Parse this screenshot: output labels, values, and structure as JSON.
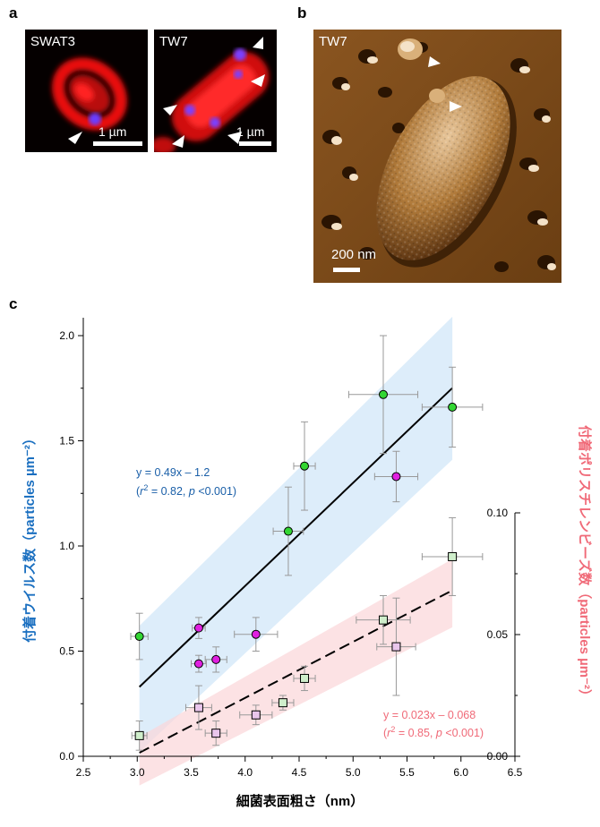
{
  "panels": {
    "a": {
      "letter": "a",
      "left_label": "SWAT3",
      "right_label": "TW7",
      "left_scale": "1 µm",
      "right_scale": "1 µm"
    },
    "b": {
      "letter": "b",
      "label": "TW7",
      "scale": "200 nm"
    },
    "c": {
      "letter": "c"
    }
  },
  "chart_data": {
    "type": "scatter",
    "xlabel": "細菌表面粗さ（nm）",
    "ylabel_left": "付着ウイルス数（particles µm⁻²）",
    "ylabel_right": "付着ポリスチレンビーズ数（particles µm⁻²）",
    "xlim": [
      2.5,
      6.5
    ],
    "ylim_left": [
      0.0,
      2.1
    ],
    "ylim_right": [
      0.0,
      0.1
    ],
    "x_ticks": [
      "2.5",
      "3.0",
      "3.5",
      "4.0",
      "4.5",
      "5.0",
      "5.5",
      "6.0",
      "6.5"
    ],
    "y_left_ticks": [
      "0.0",
      "0.5",
      "1.0",
      "1.5",
      "2.0"
    ],
    "y_right_ticks": [
      "0.00",
      "0.05",
      "0.10"
    ],
    "colors": {
      "virus_fit": "#1a5fa8",
      "bead_fit": "#f06a78",
      "green": "#33d633",
      "magenta": "#e020e0",
      "lightgreen": "#cfeecb",
      "lightpink": "#e9c6ec"
    },
    "series": [
      {
        "axis": "left",
        "marker": "circle",
        "color": "green",
        "points": [
          {
            "x": 3.02,
            "y": 0.57,
            "xerr": 0.08,
            "yerr": 0.11
          },
          {
            "x": 4.4,
            "y": 1.07,
            "xerr": 0.14,
            "yerr": 0.21
          },
          {
            "x": 4.55,
            "y": 1.38,
            "xerr": 0.1,
            "yerr": 0.21
          },
          {
            "x": 5.28,
            "y": 1.72,
            "xerr": 0.32,
            "yerr": 0.28
          },
          {
            "x": 5.92,
            "y": 1.66,
            "xerr": 0.28,
            "yerr": 0.19
          }
        ]
      },
      {
        "axis": "left",
        "marker": "circle",
        "color": "magenta",
        "points": [
          {
            "x": 3.57,
            "y": 0.44,
            "xerr": 0.07,
            "yerr": 0.04
          },
          {
            "x": 3.57,
            "y": 0.61,
            "xerr": 0.06,
            "yerr": 0.05
          },
          {
            "x": 3.73,
            "y": 0.46,
            "xerr": 0.1,
            "yerr": 0.06
          },
          {
            "x": 4.1,
            "y": 0.58,
            "xerr": 0.2,
            "yerr": 0.08
          },
          {
            "x": 5.4,
            "y": 1.33,
            "xerr": 0.2,
            "yerr": 0.12
          }
        ]
      },
      {
        "axis": "right",
        "marker": "square",
        "color": "lightgreen",
        "points": [
          {
            "x": 3.02,
            "y": 0.0085,
            "xerr": 0.07,
            "yerr": 0.006
          },
          {
            "x": 4.35,
            "y": 0.022,
            "xerr": 0.1,
            "yerr": 0.003
          },
          {
            "x": 4.55,
            "y": 0.032,
            "xerr": 0.1,
            "yerr": 0.005
          },
          {
            "x": 5.28,
            "y": 0.056,
            "xerr": 0.25,
            "yerr": 0.01
          },
          {
            "x": 5.92,
            "y": 0.082,
            "xerr": 0.28,
            "yerr": 0.016
          }
        ]
      },
      {
        "axis": "right",
        "marker": "square",
        "color": "lightpink",
        "points": [
          {
            "x": 3.57,
            "y": 0.02,
            "xerr": 0.12,
            "yerr": 0.009
          },
          {
            "x": 3.73,
            "y": 0.0095,
            "xerr": 0.1,
            "yerr": 0.005
          },
          {
            "x": 4.1,
            "y": 0.017,
            "xerr": 0.15,
            "yerr": 0.004
          },
          {
            "x": 5.4,
            "y": 0.045,
            "xerr": 0.18,
            "yerr": 0.02
          }
        ]
      }
    ],
    "fits": [
      {
        "axis": "left",
        "style": "solid",
        "x": [
          3.02,
          5.92
        ],
        "slope": 0.49,
        "intercept": -1.15,
        "band_lower": [
          [
            3.02,
            0.02
          ],
          [
            5.92,
            1.41
          ]
        ],
        "band_upper": [
          [
            3.02,
            0.62
          ],
          [
            5.92,
            2.09
          ]
        ]
      },
      {
        "axis": "right",
        "style": "dashed",
        "x": [
          3.02,
          5.92
        ],
        "slope": 0.023,
        "intercept": -0.068,
        "band_lower": [
          [
            3.02,
            -0.012
          ],
          [
            5.92,
            0.053
          ]
        ],
        "band_upper": [
          [
            3.02,
            0.008
          ],
          [
            5.92,
            0.081
          ]
        ]
      }
    ],
    "annotations": {
      "virus_eq": "y = 0.49x – 1.2",
      "virus_stats_open": "(",
      "virus_r": "r",
      "virus_r_sup": "2",
      "virus_r_rest": " = 0.82, ",
      "virus_p": "p",
      "virus_p_rest": " <0.001)",
      "bead_eq": "y = 0.023x – 0.068",
      "bead_stats_open": "(",
      "bead_r": "r",
      "bead_r_sup": "2",
      "bead_r_rest": " = 0.85, ",
      "bead_p": "p",
      "bead_p_rest": " <0.001)"
    }
  }
}
